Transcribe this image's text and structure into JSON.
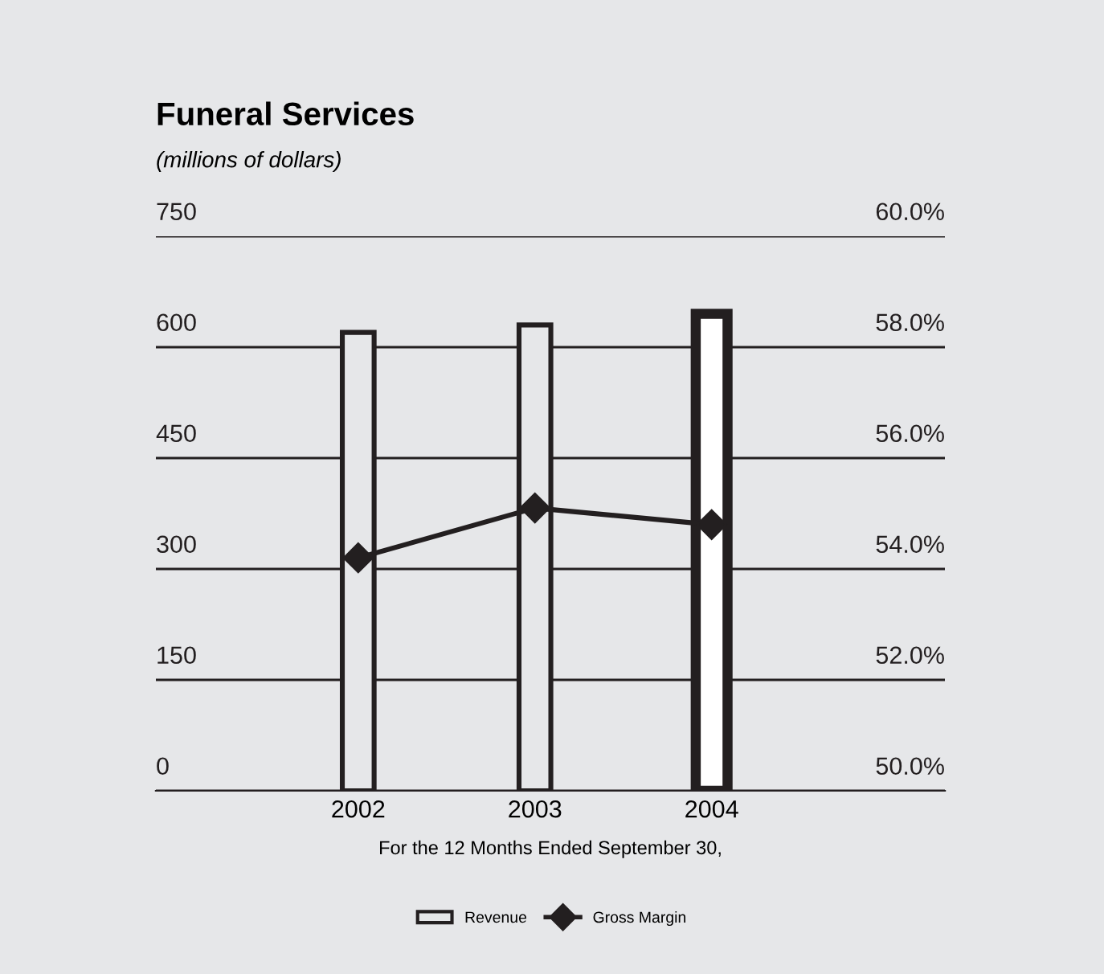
{
  "chart_data": {
    "type": "bar",
    "title": "Funeral Services",
    "subtitle": "(millions of dollars)",
    "xlabel": "For the 12 Months Ended September 30,",
    "categories": [
      "2002",
      "2003",
      "2004"
    ],
    "series": [
      {
        "name": "Revenue",
        "color": "#e6e7e9",
        "colors": [
          "#e6e7e9",
          "#e6e7e9",
          "#ffffff"
        ],
        "values": [
          620,
          630,
          645
        ]
      },
      {
        "name": "Gross Margin",
        "type": "line",
        "axis": "y2",
        "color": "#231f20",
        "values": [
          54.2,
          55.1,
          54.8
        ]
      }
    ],
    "ylim": [
      0,
      750
    ],
    "yticks": [
      0,
      150,
      300,
      450,
      600,
      750
    ],
    "y2lim": [
      50,
      60
    ],
    "y2ticks": [
      {
        "value": 50,
        "label": "50.0%"
      },
      {
        "value": 52,
        "label": "52.0%"
      },
      {
        "value": 54,
        "label": "54.0%"
      },
      {
        "value": 56,
        "label": "56.0%"
      },
      {
        "value": 58,
        "label": "58.0%"
      },
      {
        "value": 60,
        "label": "60.0%"
      }
    ],
    "grid": "y",
    "legend": "bottom",
    "marker": "diamond",
    "line_style": "solid"
  }
}
